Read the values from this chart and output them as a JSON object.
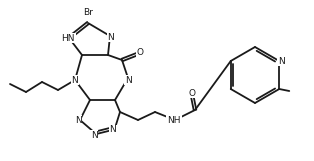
{
  "bg_color": "#ffffff",
  "line_color": "#1a1a1a",
  "figsize": [
    3.14,
    1.61
  ],
  "dpi": 100,
  "lw": 1.3,
  "atoms": {
    "Br_label": "Br",
    "N_label": "N",
    "HN_label": "HN",
    "NH_label": "NH",
    "O_label": "O",
    "N2_label": "N"
  }
}
